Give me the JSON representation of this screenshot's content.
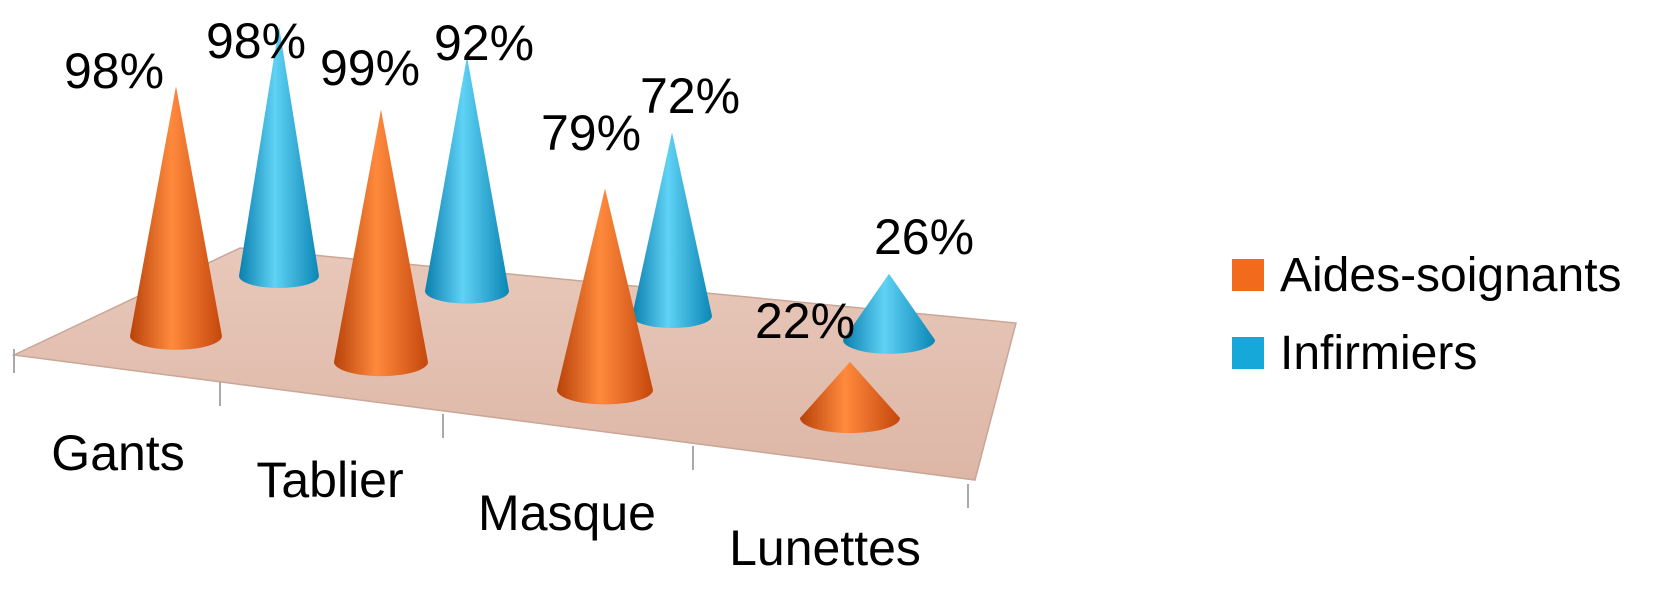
{
  "chart_data": {
    "type": "bar",
    "variant": "3d-cone",
    "categories": [
      "Gants",
      "Tablier",
      "Masque",
      "Lunettes"
    ],
    "series": [
      {
        "name": "Aides-soignants",
        "values": [
          98,
          99,
          79,
          22
        ],
        "color": "#f26a1b"
      },
      {
        "name": "Infirmiers",
        "values": [
          98,
          92,
          72,
          26
        ],
        "color": "#16a8d8"
      }
    ],
    "data_labels": {
      "Aides-soignants": [
        "98%",
        "99%",
        "79%",
        "22%"
      ],
      "Infirmiers": [
        "98%",
        "92%",
        "72%",
        "26%"
      ]
    },
    "ylim": [
      0,
      100
    ],
    "value_unit": "%",
    "grid": false,
    "floor_color": "#e3bfb0",
    "legend_position": "right"
  },
  "legend": {
    "items": [
      {
        "label": "Aides-soignants",
        "color": "#f26a1b"
      },
      {
        "label": "Infirmiers",
        "color": "#16a8d8"
      }
    ]
  }
}
